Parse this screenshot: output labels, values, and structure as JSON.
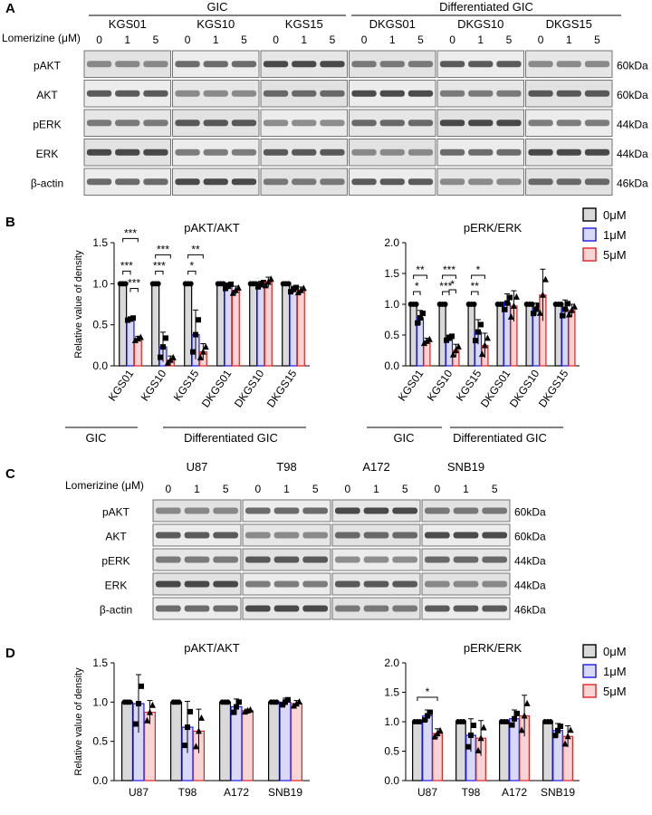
{
  "panel_labels": [
    "A",
    "B",
    "C",
    "D"
  ],
  "blotA": {
    "group_labels": [
      "GIC",
      "Differentiated GIC"
    ],
    "treatment_label": "Lomerizine (μM)",
    "samples": [
      "KGS01",
      "KGS10",
      "KGS15",
      "DKGS01",
      "DKGS10",
      "DKGS15"
    ],
    "doses": [
      "0",
      "1",
      "5"
    ],
    "rows": [
      {
        "name": "pAKT",
        "size": "60kDa"
      },
      {
        "name": "AKT",
        "size": "60kDa"
      },
      {
        "name": "pERK",
        "size": "44kDa"
      },
      {
        "name": "ERK",
        "size": "44kDa"
      },
      {
        "name": "β-actin",
        "size": "46kDa"
      }
    ]
  },
  "blotC": {
    "treatment_label": "Lomerizine (μM)",
    "samples": [
      "U87",
      "T98",
      "A172",
      "SNB19"
    ],
    "doses": [
      "0",
      "1",
      "5"
    ],
    "rows": [
      {
        "name": "pAKT",
        "size": "60kDa"
      },
      {
        "name": "AKT",
        "size": "60kDa"
      },
      {
        "name": "pERK",
        "size": "44kDa"
      },
      {
        "name": "ERK",
        "size": "44kDa"
      },
      {
        "name": "β-actin",
        "size": "46kDa"
      }
    ]
  },
  "legend": {
    "entries": [
      "0μM",
      "1μM",
      "5μM"
    ],
    "colors": [
      "#d9d9d9",
      "#d9d9f5",
      "#f8d5d5"
    ],
    "edge_colors": [
      "#000000",
      "#1a1ae6",
      "#e02020"
    ]
  },
  "group_labels_B": [
    "GIC",
    "Differentiated GIC"
  ],
  "chart_data": [
    {
      "type": "bar",
      "panel": "B",
      "title": "pAKT/AKT",
      "ylabel": "Relative value of density",
      "xlabel": "",
      "ylim": [
        0,
        1.5
      ],
      "yticks": [
        "0.0",
        "0.5",
        "1.0",
        "1.5"
      ],
      "categories": [
        "KGS01",
        "KGS10",
        "KGS15",
        "DKGS01",
        "DKGS10",
        "DKGS15"
      ],
      "series": [
        {
          "name": "0μM",
          "values": [
            1.0,
            1.0,
            1.0,
            1.0,
            1.0,
            1.0
          ],
          "err": [
            0,
            0,
            0,
            0,
            0,
            0
          ]
        },
        {
          "name": "1μM",
          "values": [
            0.57,
            0.23,
            0.38,
            0.97,
            0.99,
            0.93
          ],
          "err": [
            0.02,
            0.18,
            0.3,
            0.04,
            0.04,
            0.04
          ]
        },
        {
          "name": "5μM",
          "values": [
            0.33,
            0.07,
            0.17,
            0.92,
            1.02,
            0.92
          ],
          "err": [
            0.03,
            0.05,
            0.1,
            0.05,
            0.06,
            0.04
          ]
        }
      ],
      "significance": [
        {
          "cat": 0,
          "from": 0,
          "to": 1,
          "label": "***"
        },
        {
          "cat": 0,
          "from": 1,
          "to": 2,
          "label": "***"
        },
        {
          "cat": 0,
          "from": 0,
          "to": 2,
          "label": "***"
        },
        {
          "cat": 1,
          "from": 0,
          "to": 1,
          "label": "***"
        },
        {
          "cat": 1,
          "from": 0,
          "to": 2,
          "label": "***"
        },
        {
          "cat": 2,
          "from": 0,
          "to": 1,
          "label": "*"
        },
        {
          "cat": 2,
          "from": 0,
          "to": 2,
          "label": "**"
        }
      ]
    },
    {
      "type": "bar",
      "panel": "B",
      "title": "pERK/ERK",
      "ylabel": "",
      "xlabel": "",
      "ylim": [
        0,
        2.0
      ],
      "yticks": [
        "0.0",
        "0.5",
        "1.0",
        "1.5",
        "2.0"
      ],
      "categories": [
        "KGS01",
        "KGS10",
        "KGS15",
        "DKGS01",
        "DKGS10",
        "DKGS15"
      ],
      "series": [
        {
          "name": "0μM",
          "values": [
            1.0,
            1.0,
            1.0,
            1.0,
            1.0,
            1.0
          ],
          "err": [
            0,
            0,
            0,
            0,
            0,
            0
          ]
        },
        {
          "name": "1μM",
          "values": [
            0.78,
            0.45,
            0.55,
            1.02,
            0.92,
            0.92
          ],
          "err": [
            0.12,
            0.05,
            0.2,
            0.15,
            0.1,
            0.15
          ]
        },
        {
          "name": "5μM",
          "values": [
            0.4,
            0.25,
            0.33,
            0.97,
            1.15,
            0.9
          ],
          "err": [
            0.05,
            0.1,
            0.2,
            0.25,
            0.42,
            0.1
          ]
        }
      ],
      "significance": [
        {
          "cat": 0,
          "from": 0,
          "to": 1,
          "label": "*"
        },
        {
          "cat": 0,
          "from": 0,
          "to": 2,
          "label": "**"
        },
        {
          "cat": 1,
          "from": 0,
          "to": 1,
          "label": "***"
        },
        {
          "cat": 1,
          "from": 0,
          "to": 2,
          "label": "***"
        },
        {
          "cat": 1,
          "from": 1,
          "to": 2,
          "label": "*"
        },
        {
          "cat": 2,
          "from": 0,
          "to": 1,
          "label": "**"
        },
        {
          "cat": 2,
          "from": 0,
          "to": 2,
          "label": "*"
        }
      ]
    },
    {
      "type": "bar",
      "panel": "D",
      "title": "pAKT/AKT",
      "ylabel": "Relative value of density",
      "xlabel": "",
      "ylim": [
        0,
        1.5
      ],
      "yticks": [
        "0.0",
        "0.5",
        "1.0",
        "1.5"
      ],
      "categories": [
        "U87",
        "T98",
        "A172",
        "SNB19"
      ],
      "series": [
        {
          "name": "0μM",
          "values": [
            1.0,
            1.0,
            1.0,
            1.0
          ],
          "err": [
            0,
            0,
            0,
            0
          ]
        },
        {
          "name": "1μM",
          "values": [
            0.98,
            0.68,
            0.94,
            1.0
          ],
          "err": [
            0.37,
            0.33,
            0.1,
            0.05
          ]
        },
        {
          "name": "5μM",
          "values": [
            0.87,
            0.63,
            0.89,
            0.98
          ],
          "err": [
            0.15,
            0.28,
            0.02,
            0.04
          ]
        }
      ],
      "significance": []
    },
    {
      "type": "bar",
      "panel": "D",
      "title": "pERK/ERK",
      "ylabel": "",
      "xlabel": "",
      "ylim": [
        0,
        2.0
      ],
      "yticks": [
        "0.0",
        "0.5",
        "1.0",
        "1.5",
        "2.0"
      ],
      "categories": [
        "U87",
        "T98",
        "A172",
        "SNB19"
      ],
      "series": [
        {
          "name": "0μM",
          "values": [
            1.0,
            1.0,
            1.0,
            1.0
          ],
          "err": [
            0,
            0,
            0,
            0
          ]
        },
        {
          "name": "1μM",
          "values": [
            1.1,
            0.77,
            1.05,
            0.85
          ],
          "err": [
            0.1,
            0.28,
            0.15,
            0.12
          ]
        },
        {
          "name": "5μM",
          "values": [
            0.8,
            0.72,
            1.1,
            0.75
          ],
          "err": [
            0.08,
            0.3,
            0.35,
            0.18
          ]
        }
      ],
      "significance": [
        {
          "cat": 0,
          "from": 0,
          "to": 2,
          "label": "*"
        }
      ]
    }
  ]
}
